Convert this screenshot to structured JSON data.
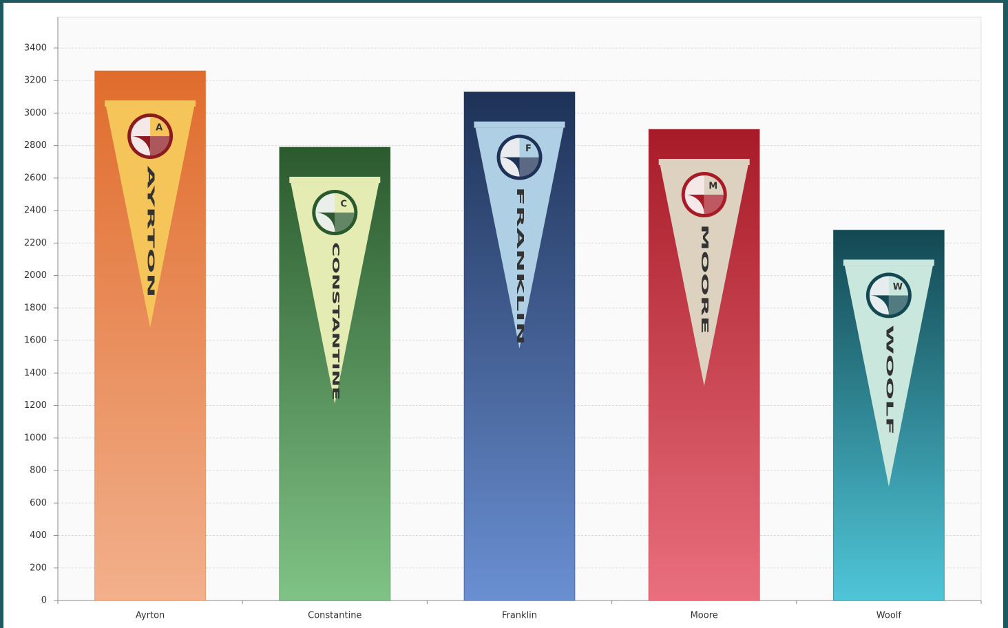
{
  "chart_data": {
    "type": "bar",
    "categories": [
      "Ayrton",
      "Constantine",
      "Franklin",
      "Moore",
      "Woolf"
    ],
    "values": [
      3260,
      2790,
      3130,
      2900,
      2280
    ],
    "colors": [
      [
        "#e06c2c",
        "#f2b08c"
      ],
      [
        "#2b5a2e",
        "#80c386"
      ],
      [
        "#1e3257",
        "#6a8fd2"
      ],
      [
        "#a71b27",
        "#ea6f7e"
      ],
      [
        "#134852",
        "#4fc6d8"
      ]
    ],
    "pennants": [
      {
        "letter": "A",
        "name": "AYRTON",
        "fill": "#f6c55a",
        "ink": "#8c1a1e"
      },
      {
        "letter": "C",
        "name": "CONSTANTINE",
        "fill": "#e4ecb4",
        "ink": "#2a5a2c"
      },
      {
        "letter": "F",
        "name": "FRANKLIN",
        "fill": "#afd0e4",
        "ink": "#1e3257"
      },
      {
        "letter": "M",
        "name": "MOORE",
        "fill": "#ddd2bf",
        "ink": "#a71b27"
      },
      {
        "letter": "W",
        "name": "WOOLF",
        "fill": "#c9e7dd",
        "ink": "#134852"
      }
    ],
    "ylim": [
      0,
      3590
    ],
    "yticks": [
      0,
      200,
      400,
      600,
      800,
      1000,
      1200,
      1400,
      1600,
      1800,
      2000,
      2200,
      2400,
      2600,
      2800,
      3000,
      3200,
      3400
    ],
    "grid": true
  }
}
